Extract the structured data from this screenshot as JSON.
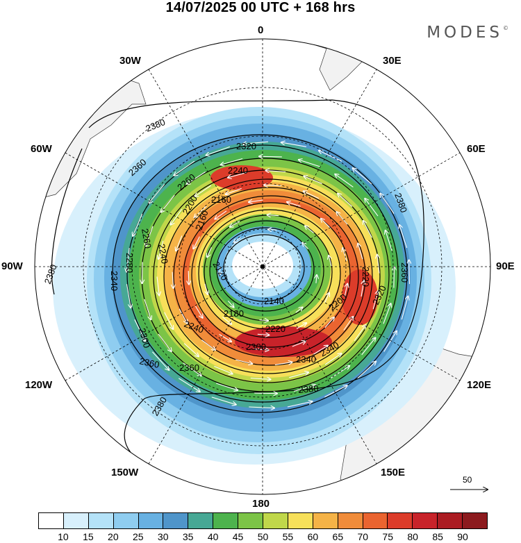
{
  "title": "14/07/2025  00 UTC  + 168 hrs",
  "logo": {
    "text": "MODES",
    "mark": "©"
  },
  "map": {
    "projection": "south-polar-stereographic",
    "longitude_labels": [
      {
        "id": "lon-0",
        "text": "0"
      },
      {
        "id": "lon-30e",
        "text": "30E"
      },
      {
        "id": "lon-60e",
        "text": "60E"
      },
      {
        "id": "lon-90e",
        "text": "90E"
      },
      {
        "id": "lon-120e",
        "text": "120E"
      },
      {
        "id": "lon-150e",
        "text": "150E"
      },
      {
        "id": "lon-180",
        "text": "180"
      },
      {
        "id": "lon-150w",
        "text": "150W"
      },
      {
        "id": "lon-120w",
        "text": "120W"
      },
      {
        "id": "lon-90w",
        "text": "90W"
      },
      {
        "id": "lon-60w",
        "text": "60W"
      },
      {
        "id": "lon-30w",
        "text": "30W"
      }
    ],
    "contour_labels": [
      "2380",
      "2360",
      "2340",
      "2320",
      "2300",
      "2280",
      "2260",
      "2240",
      "2220",
      "2200",
      "2180",
      "2160",
      "2140",
      "2120"
    ],
    "vector_legend_value": "50"
  },
  "colorbar": {
    "colors": [
      "#ffffff",
      "#d8f0fc",
      "#b4e2f8",
      "#8fcdf0",
      "#68b1e2",
      "#4f95ca",
      "#47a895",
      "#4db34d",
      "#7cc447",
      "#c0d74a",
      "#f7e05a",
      "#f5b347",
      "#f08c3a",
      "#ea6430",
      "#dc3c2a",
      "#c8232a",
      "#ab1c22",
      "#8c1a1e"
    ],
    "labels": [
      "10",
      "15",
      "20",
      "25",
      "30",
      "35",
      "40",
      "45",
      "50",
      "55",
      "60",
      "65",
      "70",
      "75",
      "80",
      "85",
      "90"
    ]
  }
}
